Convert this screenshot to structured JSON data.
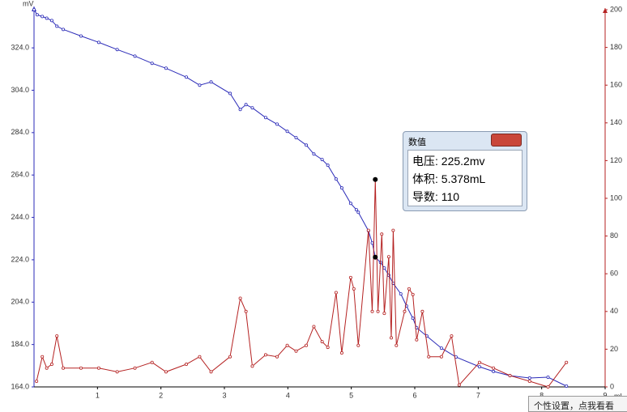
{
  "chart_data": {
    "type": "line",
    "y_label": "mV",
    "x_label": "mL",
    "xlim": [
      0,
      9
    ],
    "xticks": [
      1,
      2,
      3,
      4,
      5,
      6,
      7,
      8,
      9
    ],
    "ylim": [
      164,
      342
    ],
    "yticks": [
      {
        "value": 164,
        "label": "164.0"
      },
      {
        "value": 184,
        "label": "184.0"
      },
      {
        "value": 204,
        "label": "204.0"
      },
      {
        "value": 224,
        "label": "224.0"
      },
      {
        "value": 244,
        "label": "244.0"
      },
      {
        "value": 264,
        "label": "264.0"
      },
      {
        "value": 284,
        "label": "284.0"
      },
      {
        "value": 304,
        "label": "304.0"
      },
      {
        "value": 324,
        "label": "324.0"
      }
    ],
    "y2lim": [
      0,
      200
    ],
    "y2ticks": [
      0,
      20,
      40,
      60,
      80,
      100,
      120,
      140,
      160,
      180,
      200
    ],
    "series": [
      {
        "color": "#2b2bb8",
        "x": [
          0,
          0.05,
          0.13,
          0.2,
          0.28,
          0.36,
          0.46,
          0.74,
          1.02,
          1.31,
          1.59,
          1.86,
          2.08,
          2.4,
          2.61,
          2.79,
          3.09,
          3.25,
          3.34,
          3.44,
          3.65,
          3.83,
          3.99,
          4.13,
          4.29,
          4.41,
          4.54,
          4.63,
          4.76,
          4.85,
          4.99,
          5.08,
          5.11,
          5.27,
          5.33,
          5.378,
          5.46,
          5.52,
          5.59,
          5.66,
          5.78,
          5.87,
          5.97,
          6.03,
          6.19,
          6.42,
          6.65,
          7.02,
          7.24,
          7.5,
          7.81,
          8.1,
          8.39
        ],
        "values": [
          342,
          339.6,
          338.8,
          338,
          336.9,
          334.2,
          332.7,
          329.6,
          326.6,
          323.2,
          320.1,
          316.7,
          314.4,
          310.2,
          306.4,
          307.9,
          302.5,
          294.9,
          297.2,
          295.7,
          291.1,
          288,
          284.6,
          281.6,
          278.1,
          273.9,
          271.3,
          268.6,
          262.1,
          257.9,
          250.6,
          247.6,
          246.4,
          237.7,
          231.9,
          225.2,
          222.8,
          220.1,
          216.7,
          212.9,
          207.9,
          202.2,
          196.4,
          191.9,
          188,
          182.3,
          178.1,
          173.5,
          171.3,
          169.3,
          168.2,
          168.6,
          164.4
        ]
      },
      {
        "color": "#b52222",
        "axis": "y2",
        "x": [
          0.04,
          0.13,
          0.2,
          0.28,
          0.36,
          0.46,
          0.74,
          1.02,
          1.31,
          1.59,
          1.86,
          2.08,
          2.4,
          2.61,
          2.79,
          3.09,
          3.25,
          3.34,
          3.44,
          3.65,
          3.83,
          3.99,
          4.13,
          4.29,
          4.41,
          4.54,
          4.63,
          4.76,
          4.85,
          4.99,
          5.04,
          5.11,
          5.27,
          5.33,
          5.378,
          5.42,
          5.48,
          5.52,
          5.59,
          5.63,
          5.66,
          5.71,
          5.84,
          5.91,
          5.97,
          6.03,
          6.12,
          6.22,
          6.42,
          6.58,
          6.7,
          7.02,
          7.24,
          7.5,
          7.81,
          8.1,
          8.39
        ],
        "values": [
          3,
          16,
          10,
          12,
          27,
          10,
          10,
          10,
          8,
          10,
          13,
          8,
          12,
          16,
          8,
          16,
          47,
          40,
          11,
          17,
          16,
          22,
          19,
          22,
          32,
          24,
          21,
          50,
          18,
          58,
          52,
          22,
          83,
          40,
          110,
          40,
          81,
          39,
          69,
          26,
          83,
          22,
          40,
          52,
          49,
          25,
          40,
          16,
          16,
          27,
          1,
          13,
          10,
          6,
          3,
          0,
          13
        ]
      }
    ],
    "highlight": {
      "x": 5.378,
      "y": 225.2,
      "y2": 110
    }
  },
  "tooltip": {
    "title": "数值",
    "rows": [
      "电压: 225.2mv",
      "体积: 5.378mL",
      "导数: 110"
    ]
  },
  "popup": "个性设置，点我看看"
}
